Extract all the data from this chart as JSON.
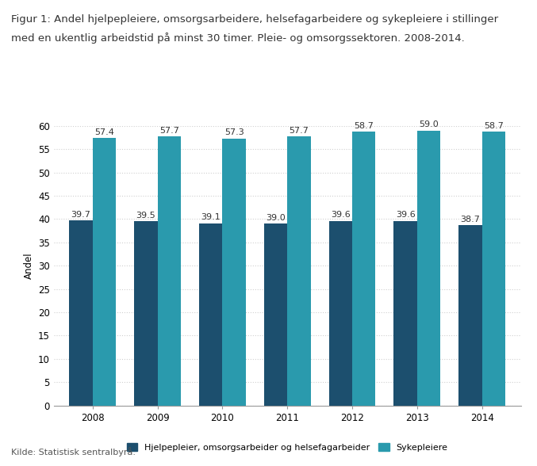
{
  "title_line1": "Figur 1: Andel hjelpepleiere, omsorgsarbeidere, helsefagarbeidere og sykepleiere i stillinger",
  "title_line2": "med en ukentlig arbeidstid på minst 30 timer. Pleie- og omsorgssektoren. 2008-2014.",
  "years": [
    2008,
    2009,
    2010,
    2011,
    2012,
    2013,
    2014
  ],
  "series1_label": "Hjelpepleier, omsorgsarbeider og helsefagarbeider",
  "series2_label": "Sykepleiere",
  "series1_values": [
    39.7,
    39.5,
    39.1,
    39.0,
    39.6,
    39.6,
    38.7
  ],
  "series2_values": [
    57.4,
    57.7,
    57.3,
    57.7,
    58.7,
    59.0,
    58.7
  ],
  "series1_color": "#1c4f6e",
  "series2_color": "#2a9aad",
  "ylabel": "Andel",
  "ylim": [
    0,
    60
  ],
  "yticks": [
    0,
    5,
    10,
    15,
    20,
    25,
    30,
    35,
    40,
    45,
    50,
    55,
    60
  ],
  "source": "Kilde: Statistisk sentralbyrå.",
  "bar_width": 0.36,
  "title_fontsize": 9.5,
  "label_fontsize": 8.0,
  "tick_fontsize": 8.5,
  "source_fontsize": 8.0,
  "legend_fontsize": 8.0,
  "background_color": "#ffffff",
  "grid_color": "#d0d0d0",
  "grid_style": ":"
}
